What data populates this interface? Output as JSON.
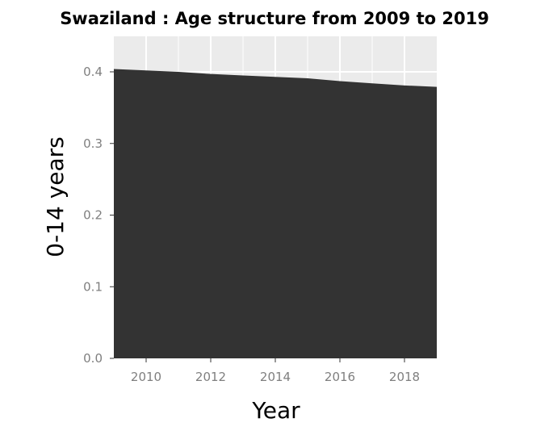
{
  "chart_data": {
    "type": "area",
    "title": "Swaziland : Age structure from 2009 to 2019",
    "xlabel": "Year",
    "ylabel": "0-14 years",
    "x": [
      2009,
      2010,
      2011,
      2012,
      2013,
      2014,
      2015,
      2016,
      2017,
      2018,
      2019
    ],
    "series": [
      {
        "values": [
          0.404,
          0.402,
          0.4,
          0.397,
          0.395,
          0.393,
          0.391,
          0.387,
          0.384,
          0.381,
          0.379
        ]
      }
    ],
    "xlim": [
      2009,
      2019
    ],
    "ylim": [
      0.0,
      0.4
    ],
    "xticks": [
      "2010",
      "2012",
      "2014",
      "2016",
      "2018"
    ],
    "yticks": [
      "0.0",
      "0.1",
      "0.2",
      "0.3",
      "0.4"
    ],
    "grid": true,
    "colors": {
      "area": "#333333",
      "panel": "#ebebeb",
      "grid": "#ffffff"
    }
  }
}
